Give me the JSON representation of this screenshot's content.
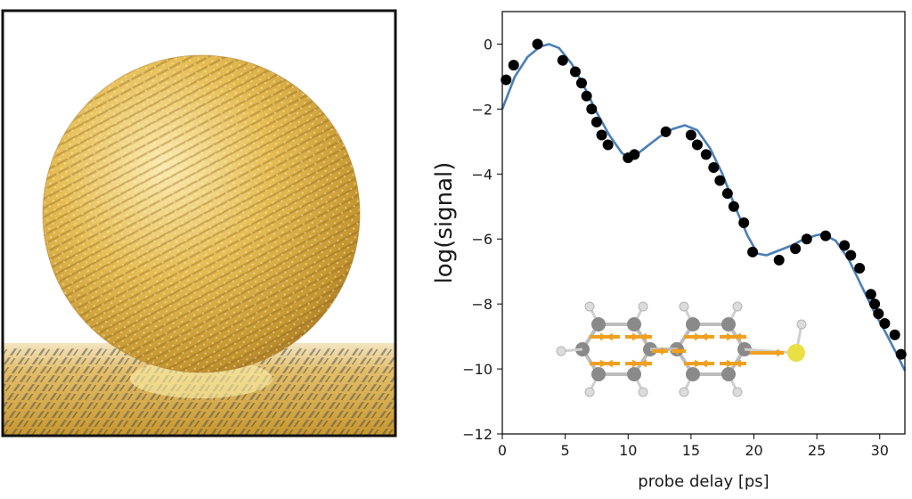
{
  "chart_data": {
    "type": "scatter",
    "xlabel": "probe delay [ps]",
    "ylabel": "log(signal)",
    "xlim": [
      0,
      32
    ],
    "ylim": [
      -12,
      1
    ],
    "x_ticks": [
      0,
      5,
      10,
      15,
      20,
      25,
      30
    ],
    "y_ticks": [
      0,
      -2,
      -4,
      -6,
      -8,
      -10,
      -12
    ],
    "x_tick_labels": [
      "0",
      "5",
      "10",
      "15",
      "20",
      "25",
      "30"
    ],
    "y_tick_labels": [
      "0",
      "−2",
      "−4",
      "−6",
      "−8",
      "−10",
      "−12"
    ],
    "grid": false,
    "series": [
      {
        "kind": "points",
        "color": "#000000",
        "x": [
          0.3,
          0.9,
          2.8,
          4.8,
          5.8,
          6.3,
          6.7,
          7.1,
          7.5,
          7.9,
          8.4,
          10.0,
          10.5,
          13.0,
          15.0,
          15.5,
          16.2,
          16.8,
          17.3,
          17.9,
          18.4,
          19.2,
          19.9,
          22.0,
          23.3,
          24.2,
          25.7,
          27.2,
          27.7,
          28.4,
          29.3,
          29.6,
          29.9,
          30.4,
          31.2,
          31.7
        ],
        "y": [
          -1.1,
          -0.65,
          0.0,
          -0.5,
          -0.85,
          -1.2,
          -1.6,
          -2.0,
          -2.4,
          -2.8,
          -3.1,
          -3.5,
          -3.4,
          -2.7,
          -2.8,
          -3.1,
          -3.4,
          -3.8,
          -4.2,
          -4.6,
          -5.0,
          -5.5,
          -6.4,
          -6.65,
          -6.3,
          -6.0,
          -5.9,
          -6.2,
          -6.5,
          -6.9,
          -7.7,
          -8.0,
          -8.3,
          -8.6,
          -8.95,
          -9.55
        ]
      },
      {
        "kind": "line",
        "color": "#4a7fb5",
        "x": [
          0,
          1,
          2,
          3,
          3.7,
          4.5,
          5.5,
          6.5,
          7.5,
          8.5,
          9.5,
          10,
          10.5,
          11.5,
          12.5,
          13.5,
          14.5,
          15.5,
          16.5,
          17.5,
          18.5,
          19.5,
          20.3,
          21,
          22,
          23,
          24,
          25,
          25.5,
          26.5,
          27.5,
          28.5,
          29.5,
          30.5,
          31.3,
          32
        ],
        "y": [
          -2.0,
          -1.0,
          -0.4,
          -0.08,
          0.0,
          -0.12,
          -0.6,
          -1.3,
          -2.1,
          -2.8,
          -3.35,
          -3.5,
          -3.45,
          -3.15,
          -2.85,
          -2.62,
          -2.5,
          -2.65,
          -3.2,
          -4.0,
          -5.0,
          -5.9,
          -6.45,
          -6.5,
          -6.35,
          -6.2,
          -6.0,
          -5.88,
          -5.85,
          -6.05,
          -6.6,
          -7.4,
          -8.2,
          -8.9,
          -9.5,
          -10.05
        ]
      }
    ],
    "inset": {
      "description_label": "",
      "atom_colors": {
        "carbon": "#8a8a8a",
        "hydrogen": "#dcdcdc",
        "sulfur": "#e8e045",
        "arrow": "#f0a020"
      }
    }
  },
  "left_image": {
    "sphere_color": "#e0b84a",
    "sphere_highlight": "#fbe4a0",
    "sphere_shadow": "#a9782a",
    "frame_color": "#111111",
    "substrate_color": "#d9a93c"
  }
}
